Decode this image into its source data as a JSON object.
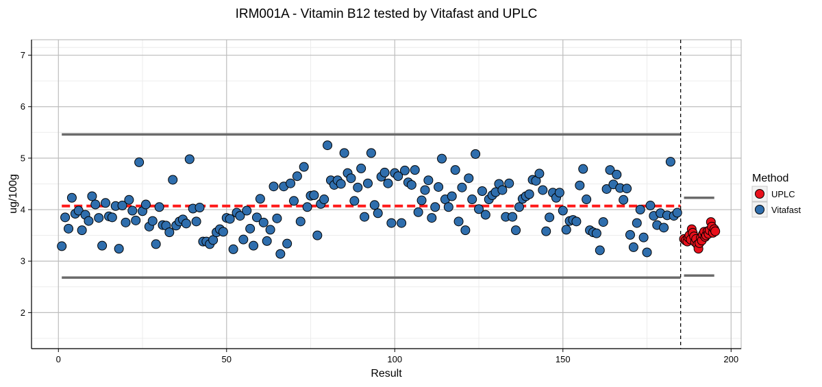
{
  "chart_data": {
    "type": "scatter",
    "title": "IRM001A - Vitamin B12 tested by Vitafast and UPLC",
    "xlabel": "Result",
    "ylabel": "ug/100g",
    "xlim": [
      -8,
      203
    ],
    "ylim": [
      1.3,
      7.3
    ],
    "x_ticks": [
      0,
      50,
      100,
      150,
      200
    ],
    "y_ticks": [
      2,
      3,
      4,
      5,
      6,
      7
    ],
    "grid": true,
    "legend": {
      "title": "Method",
      "placement": "right",
      "entries": [
        {
          "label": "UPLC",
          "color": "#e8101b"
        },
        {
          "label": "Vitafast",
          "color": "#2f6ead"
        }
      ]
    },
    "reference_lines": {
      "vitafast_mean": {
        "value": 4.07,
        "x_range": [
          1,
          185
        ],
        "color": "#ff1a1a",
        "style": "dashed"
      },
      "vitafast_upper": {
        "value": 5.46,
        "x_range": [
          1,
          185
        ],
        "color": "#6b6b6b",
        "style": "solid"
      },
      "vitafast_lower": {
        "value": 2.68,
        "x_range": [
          1,
          185
        ],
        "color": "#6b6b6b",
        "style": "solid"
      },
      "uplc_upper": {
        "value": 4.23,
        "x_range": [
          186,
          195
        ],
        "color": "#6b6b6b",
        "style": "solid"
      },
      "uplc_lower": {
        "value": 2.72,
        "x_range": [
          186,
          195
        ],
        "color": "#6b6b6b",
        "style": "solid"
      },
      "method_split": {
        "value": 185,
        "color": "#000000",
        "style": "dashed"
      }
    },
    "series": [
      {
        "name": "Vitafast",
        "color": "#2f6ead",
        "x": [
          1,
          2,
          3,
          4,
          5,
          6,
          7,
          8,
          9,
          10,
          11,
          12,
          13,
          14,
          15,
          16,
          17,
          18,
          19,
          20,
          21,
          22,
          23,
          24,
          25,
          26,
          27,
          28,
          29,
          30,
          31,
          32,
          33,
          34,
          35,
          36,
          37,
          38,
          39,
          40,
          41,
          42,
          43,
          44,
          45,
          46,
          47,
          48,
          49,
          50,
          51,
          52,
          53,
          54,
          55,
          56,
          57,
          58,
          59,
          60,
          61,
          62,
          63,
          64,
          65,
          66,
          67,
          68,
          69,
          70,
          71,
          72,
          73,
          74,
          75,
          76,
          77,
          78,
          79,
          80,
          81,
          82,
          83,
          84,
          85,
          86,
          87,
          88,
          89,
          90,
          91,
          92,
          93,
          94,
          95,
          96,
          97,
          98,
          99,
          100,
          101,
          102,
          103,
          104,
          105,
          106,
          107,
          108,
          109,
          110,
          111,
          112,
          113,
          114,
          115,
          116,
          117,
          118,
          119,
          120,
          121,
          122,
          123,
          124,
          125,
          126,
          127,
          128,
          129,
          130,
          131,
          132,
          133,
          134,
          135,
          136,
          137,
          138,
          139,
          140,
          141,
          142,
          143,
          144,
          145,
          146,
          147,
          148,
          149,
          150,
          151,
          152,
          153,
          154,
          155,
          156,
          157,
          158,
          159,
          160,
          161,
          162,
          163,
          164,
          165,
          166,
          167,
          168,
          169,
          170,
          171,
          172,
          173,
          174,
          175,
          176,
          177,
          178,
          179,
          180,
          181,
          182,
          183,
          184
        ],
        "values": [
          3.29,
          3.85,
          3.63,
          4.23,
          3.92,
          3.98,
          3.6,
          3.9,
          3.78,
          4.26,
          4.1,
          3.84,
          3.3,
          4.13,
          3.87,
          3.85,
          4.07,
          3.24,
          4.08,
          3.75,
          4.19,
          3.98,
          3.79,
          4.92,
          3.97,
          4.1,
          3.67,
          3.78,
          3.33,
          4.05,
          3.7,
          3.69,
          3.56,
          4.58,
          3.69,
          3.77,
          3.81,
          3.73,
          4.98,
          4.02,
          3.77,
          4.04,
          3.38,
          3.38,
          3.33,
          3.41,
          3.56,
          3.62,
          3.57,
          3.84,
          3.82,
          3.23,
          3.94,
          3.88,
          3.42,
          3.98,
          3.63,
          3.3,
          3.85,
          4.21,
          3.75,
          3.39,
          3.61,
          4.45,
          3.83,
          3.14,
          4.45,
          3.34,
          4.51,
          4.17,
          4.65,
          3.77,
          4.83,
          4.05,
          4.27,
          4.28,
          3.5,
          4.11,
          4.2,
          5.25,
          4.57,
          4.48,
          4.57,
          4.5,
          5.1,
          4.71,
          4.61,
          4.17,
          4.43,
          4.8,
          3.86,
          4.51,
          5.1,
          4.09,
          3.93,
          4.64,
          4.72,
          4.51,
          3.74,
          4.71,
          4.65,
          3.74,
          4.76,
          4.53,
          4.48,
          4.77,
          3.95,
          4.18,
          4.38,
          4.57,
          3.84,
          4.05,
          4.44,
          4.99,
          4.2,
          4.05,
          4.26,
          4.77,
          3.77,
          4.43,
          3.6,
          4.61,
          4.2,
          5.08,
          4.01,
          4.36,
          3.9,
          4.2,
          4.28,
          4.34,
          4.5,
          4.38,
          3.86,
          4.51,
          3.86,
          3.6,
          4.05,
          4.21,
          4.26,
          4.3,
          4.58,
          4.56,
          4.7,
          4.38,
          3.58,
          3.85,
          4.33,
          4.23,
          4.33,
          3.98,
          3.61,
          3.78,
          3.8,
          3.77,
          4.47,
          4.79,
          4.2,
          3.6,
          3.56,
          3.54,
          3.21,
          3.76,
          4.4,
          4.77,
          4.49,
          4.68,
          4.42,
          4.19,
          4.41,
          3.51,
          3.27,
          3.74,
          4.0,
          3.46,
          3.17,
          4.08,
          3.88,
          3.7,
          3.93,
          3.65,
          3.89,
          4.93,
          3.88,
          3.94
        ]
      },
      {
        "name": "UPLC",
        "color": "#e8101b",
        "x": [
          186,
          186.5,
          187,
          187.3,
          187.6,
          188,
          188.3,
          188.6,
          189,
          189.3,
          189.6,
          190,
          190.3,
          190.6,
          191,
          191.3,
          191.6,
          192,
          192.3,
          192.6,
          193,
          193.3,
          193.6,
          194,
          194.3,
          194.6,
          195,
          195.3
        ],
        "values": [
          3.43,
          3.4,
          3.38,
          3.46,
          3.5,
          3.42,
          3.62,
          3.55,
          3.48,
          3.37,
          3.43,
          3.32,
          3.24,
          3.35,
          3.45,
          3.4,
          3.52,
          3.57,
          3.47,
          3.5,
          3.58,
          3.53,
          3.6,
          3.76,
          3.67,
          3.55,
          3.62,
          3.58
        ]
      }
    ]
  }
}
